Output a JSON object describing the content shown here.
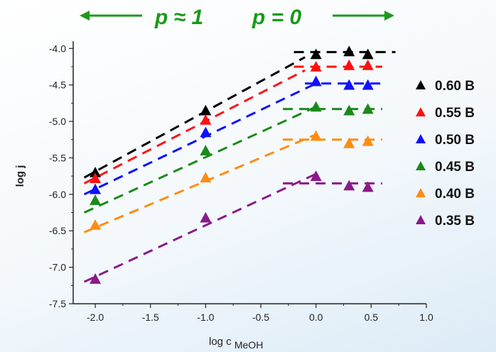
{
  "chart_data": {
    "type": "scatter",
    "title": "",
    "xlabel": "log c",
    "xlabel_subscript": "MeOH",
    "ylabel": "log j",
    "xlim": [
      -2.2,
      1.0
    ],
    "ylim": [
      -7.5,
      -3.9
    ],
    "xticks": [
      "-2.0",
      "-1.5",
      "-1.0",
      "-0.5",
      "0.0",
      "0.5",
      "1.0"
    ],
    "yticks": [
      "-4.0",
      "-4.5",
      "-5.0",
      "-5.5",
      "-6.0",
      "-6.5",
      "-7.0",
      "-7.5"
    ],
    "annotations": {
      "left": "p ≈ 1",
      "right": "p = 0"
    },
    "legend_position": "right",
    "series": [
      {
        "name": "0.60 B",
        "color": "#000000",
        "x": [
          -2.0,
          -1.0,
          0.0,
          0.3,
          0.47
        ],
        "y": [
          -5.7,
          -4.85,
          -4.08,
          -4.04,
          -4.08
        ]
      },
      {
        "name": "0.55 B",
        "color": "#ff1010",
        "x": [
          -2.0,
          -1.0,
          0.0,
          0.3,
          0.47
        ],
        "y": [
          -5.78,
          -4.98,
          -4.25,
          -4.23,
          -4.23
        ]
      },
      {
        "name": "0.50 B",
        "color": "#1010ff",
        "x": [
          -2.0,
          -1.0,
          0.0,
          0.3,
          0.47
        ],
        "y": [
          -5.93,
          -5.15,
          -4.45,
          -4.5,
          -4.5
        ]
      },
      {
        "name": "0.45 B",
        "color": "#1a8a1a",
        "x": [
          -2.0,
          -1.0,
          0.0,
          0.3,
          0.47
        ],
        "y": [
          -6.08,
          -5.4,
          -4.8,
          -4.85,
          -4.83
        ]
      },
      {
        "name": "0.40 B",
        "color": "#ff8c10",
        "x": [
          -2.0,
          -1.0,
          0.0,
          0.3,
          0.47
        ],
        "y": [
          -6.42,
          -5.77,
          -5.2,
          -5.3,
          -5.27
        ]
      },
      {
        "name": "0.35 B",
        "color": "#8a1a8a",
        "x": [
          -2.0,
          -1.0,
          0.0,
          0.3,
          0.47
        ],
        "y": [
          -7.16,
          -6.32,
          -5.75,
          -5.88,
          -5.9
        ]
      }
    ],
    "fit_lines": [
      {
        "series": "0.60 B",
        "segments": [
          [
            [
              -2.1,
              -5.77
            ],
            [
              -0.1,
              -4.12
            ]
          ],
          [
            [
              -0.2,
              -4.05
            ],
            [
              0.72,
              -4.05
            ]
          ]
        ]
      },
      {
        "series": "0.55 B",
        "segments": [
          [
            [
              -2.1,
              -5.85
            ],
            [
              -0.1,
              -4.3
            ]
          ],
          [
            [
              -0.2,
              -4.25
            ],
            [
              0.6,
              -4.25
            ]
          ]
        ]
      },
      {
        "series": "0.50 B",
        "segments": [
          [
            [
              -2.1,
              -6.0
            ],
            [
              0.0,
              -4.48
            ]
          ],
          [
            [
              -0.1,
              -4.48
            ],
            [
              0.6,
              -4.48
            ]
          ]
        ]
      },
      {
        "series": "0.45 B",
        "segments": [
          [
            [
              -2.1,
              -6.25
            ],
            [
              0.0,
              -4.8
            ]
          ],
          [
            [
              -0.3,
              -4.83
            ],
            [
              0.6,
              -4.83
            ]
          ]
        ]
      },
      {
        "series": "0.40 B",
        "segments": [
          [
            [
              -2.1,
              -6.52
            ],
            [
              0.0,
              -5.18
            ]
          ],
          [
            [
              -0.3,
              -5.25
            ],
            [
              0.6,
              -5.25
            ]
          ]
        ]
      },
      {
        "series": "0.35 B",
        "segments": [
          [
            [
              -2.1,
              -7.2
            ],
            [
              0.0,
              -5.72
            ]
          ],
          [
            [
              -0.3,
              -5.85
            ],
            [
              0.6,
              -5.85
            ]
          ]
        ]
      }
    ]
  }
}
